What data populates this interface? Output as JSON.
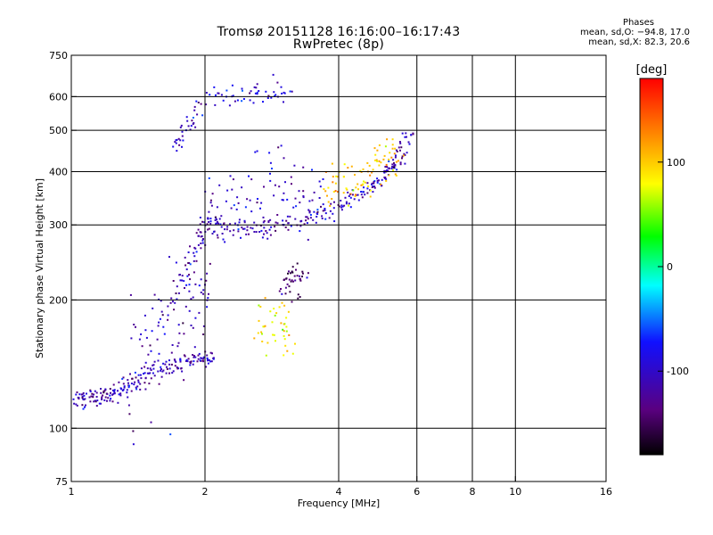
{
  "chart_data": {
    "type": "scatter",
    "title": "Tromsø 20151128 16:16:00–16:17:43",
    "subtitle": "RwPretec (8p)",
    "xlabel": "Frequency [MHz]",
    "ylabel": "Stationary phase Virtual Height [km]",
    "x_scale": "log",
    "y_scale": "log",
    "xlim": [
      1,
      16
    ],
    "ylim": [
      75,
      750
    ],
    "x_ticks": [
      1,
      2,
      4,
      6,
      8,
      10,
      16
    ],
    "x_tick_labels": [
      "1",
      "2",
      "4",
      "6",
      "8",
      "10",
      "16"
    ],
    "x_gridlines": [
      2,
      4,
      6,
      8,
      10
    ],
    "y_ticks": [
      75,
      100,
      200,
      300,
      400,
      500,
      600,
      750
    ],
    "y_tick_labels": [
      "75",
      "100",
      "200",
      "300",
      "400",
      "500",
      "600",
      "750"
    ],
    "y_gridlines": [
      100,
      200,
      300,
      400,
      500,
      600
    ],
    "grid": true,
    "colorbar": {
      "label": "[deg]",
      "min": -180,
      "max": 180,
      "ticks": [
        100,
        0,
        -100
      ],
      "tick_labels": [
        "100",
        "0",
        "-100"
      ],
      "colors": [
        "#000000",
        "#5a0080",
        "#1010ff",
        "#00ffff",
        "#00ff00",
        "#ffff00",
        "#ff8000",
        "#ff0000"
      ]
    },
    "stats": {
      "title": "Phases",
      "line_o": "mean, sd,O: −94.8, 17.0",
      "line_x": "mean, sd,X:  82.3, 20.6"
    },
    "traces": [
      {
        "name": "",
        "points": [
          [
            1.02,
            117
          ],
          [
            1.05,
            117
          ],
          [
            1.1,
            117
          ],
          [
            1.15,
            118
          ],
          [
            1.2,
            119
          ],
          [
            1.25,
            120
          ],
          [
            1.3,
            124
          ],
          [
            1.35,
            127
          ],
          [
            1.4,
            130
          ],
          [
            1.5,
            134
          ],
          [
            1.6,
            138
          ],
          [
            1.7,
            141
          ],
          [
            1.8,
            143
          ],
          [
            1.9,
            145
          ],
          [
            2.0,
            146
          ],
          [
            2.1,
            147
          ]
        ],
        "phase": -105,
        "spread_km": 3
      },
      {
        "name": "",
        "points": [
          [
            1.35,
            135
          ],
          [
            1.45,
            150
          ],
          [
            1.55,
            165
          ],
          [
            1.65,
            178
          ],
          [
            1.75,
            190
          ],
          [
            1.85,
            200
          ],
          [
            1.95,
            205
          ],
          [
            2.05,
            210
          ]
        ],
        "phase": -110,
        "spread_km": 30
      },
      {
        "name": "",
        "points": [
          [
            1.75,
            200
          ],
          [
            1.85,
            240
          ],
          [
            1.95,
            280
          ],
          [
            2.0,
            300
          ],
          [
            2.1,
            300
          ],
          [
            2.2,
            295
          ],
          [
            2.4,
            292
          ],
          [
            2.6,
            295
          ],
          [
            2.8,
            298
          ],
          [
            3.0,
            305
          ],
          [
            3.3,
            312
          ],
          [
            3.6,
            320
          ],
          [
            3.9,
            328
          ],
          [
            4.2,
            340
          ],
          [
            4.5,
            355
          ],
          [
            4.8,
            375
          ],
          [
            5.0,
            390
          ],
          [
            5.2,
            405
          ],
          [
            5.4,
            420
          ],
          [
            5.6,
            450
          ],
          [
            5.8,
            500
          ]
        ],
        "phase": -105,
        "spread_km": 8
      },
      {
        "name": "",
        "points": [
          [
            2.0,
            320
          ],
          [
            2.2,
            340
          ],
          [
            2.5,
            360
          ],
          [
            2.8,
            380
          ],
          [
            3.1,
            360
          ],
          [
            3.4,
            340
          ],
          [
            3.7,
            345
          ]
        ],
        "phase": -100,
        "spread_km": 40
      },
      {
        "name": "",
        "points": [
          [
            1.7,
            450
          ],
          [
            1.8,
            500
          ],
          [
            1.9,
            560
          ],
          [
            2.2,
            600
          ],
          [
            2.5,
            610
          ],
          [
            2.8,
            620
          ],
          [
            3.1,
            615
          ]
        ],
        "phase": -95,
        "spread_km": 20
      },
      {
        "name": "",
        "points": [
          [
            3.7,
            360
          ],
          [
            4.0,
            370
          ],
          [
            4.3,
            380
          ],
          [
            4.6,
            390
          ],
          [
            4.9,
            410
          ],
          [
            5.2,
            430
          ],
          [
            5.5,
            440
          ]
        ],
        "phase": 100,
        "spread_km": 25
      },
      {
        "name": "",
        "points": [
          [
            2.6,
            170
          ],
          [
            2.8,
            175
          ],
          [
            3.0,
            172
          ],
          [
            3.1,
            168
          ]
        ],
        "phase": 90,
        "spread_km": 15
      },
      {
        "name": "",
        "points": [
          [
            3.0,
            210
          ],
          [
            3.1,
            220
          ],
          [
            3.2,
            225
          ],
          [
            3.4,
            215
          ]
        ],
        "phase": -140,
        "spread_km": 12
      }
    ]
  }
}
